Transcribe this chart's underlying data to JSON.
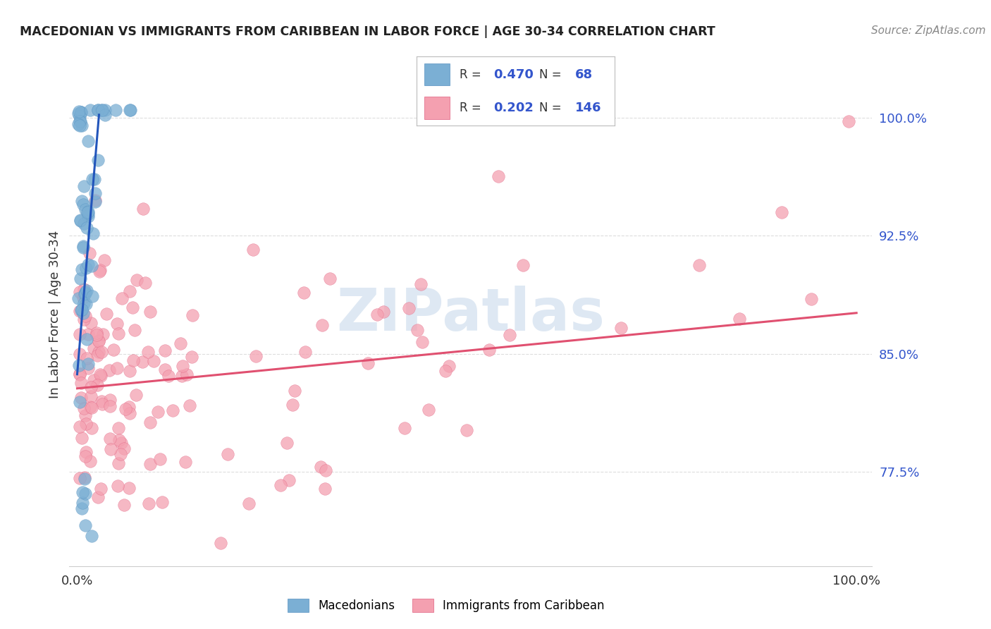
{
  "title": "MACEDONIAN VS IMMIGRANTS FROM CARIBBEAN IN LABOR FORCE | AGE 30-34 CORRELATION CHART",
  "source": "Source: ZipAtlas.com",
  "ylabel": "In Labor Force | Age 30-34",
  "ytick_labels": [
    "77.5%",
    "85.0%",
    "92.5%",
    "100.0%"
  ],
  "ytick_values": [
    0.775,
    0.85,
    0.925,
    1.0
  ],
  "xlim": [
    -0.01,
    1.02
  ],
  "ylim": [
    0.715,
    1.035
  ],
  "blue_color": "#7bafd4",
  "pink_color": "#f4a0b0",
  "blue_edge_color": "#5590c0",
  "pink_edge_color": "#e06080",
  "blue_line_color": "#2255bb",
  "pink_line_color": "#e05070",
  "R_blue": 0.47,
  "N_blue": 68,
  "R_pink": 0.202,
  "N_pink": 146,
  "watermark": "ZIPatlas",
  "legend_R_N_color": "#3355cc",
  "legend_text_color": "#333333",
  "grid_color": "#dddddd",
  "title_color": "#222222",
  "source_color": "#888888",
  "ylabel_color": "#333333",
  "axis_label_color": "#333333",
  "yticklabel_color": "#3355cc",
  "bottom_legend_labels": [
    "Macedonians",
    "Immigrants from Caribbean"
  ]
}
